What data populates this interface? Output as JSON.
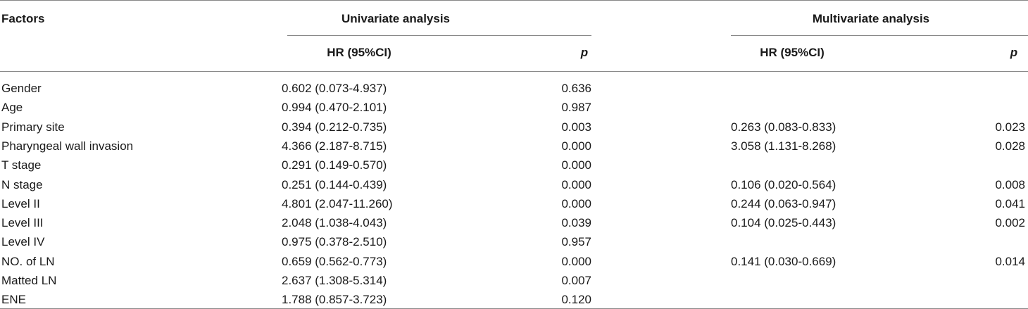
{
  "header": {
    "factors": "Factors",
    "groups": [
      "Univariate analysis",
      "Multivariate analysis"
    ],
    "subheaders": [
      "HR (95%CI)",
      "p",
      "HR (95%CI)",
      "p"
    ]
  },
  "table": {
    "rows": [
      [
        "Gender",
        "0.602 (0.073-4.937)",
        "0.636",
        null,
        null
      ],
      [
        "Age",
        "0.994 (0.470-2.101)",
        "0.987",
        null,
        null
      ],
      [
        "Primary site",
        "0.394 (0.212-0.735)",
        "0.003",
        "0.263 (0.083-0.833)",
        "0.023"
      ],
      [
        "Pharyngeal wall invasion",
        "4.366 (2.187-8.715)",
        "0.000",
        "3.058 (1.131-8.268)",
        "0.028"
      ],
      [
        "T stage",
        "0.291 (0.149-0.570)",
        "0.000",
        null,
        null
      ],
      [
        "N stage",
        "0.251 (0.144-0.439)",
        "0.000",
        "0.106 (0.020-0.564)",
        "0.008"
      ],
      [
        "Level II",
        "4.801 (2.047-11.260)",
        "0.000",
        "0.244 (0.063-0.947)",
        "0.041"
      ],
      [
        "Level III",
        "2.048 (1.038-4.043)",
        "0.039",
        "0.104 (0.025-0.443)",
        "0.002"
      ],
      [
        "Level IV",
        "0.975 (0.378-2.510)",
        "0.957",
        null,
        null
      ],
      [
        "NO. of LN",
        "0.659 (0.562-0.773)",
        "0.000",
        "0.141 (0.030-0.669)",
        "0.014"
      ],
      [
        "Matted LN",
        "2.637 (1.308-5.314)",
        "0.007",
        null,
        null
      ],
      [
        "ENE",
        "1.788 (0.857-3.723)",
        "0.120",
        null,
        null
      ]
    ]
  }
}
